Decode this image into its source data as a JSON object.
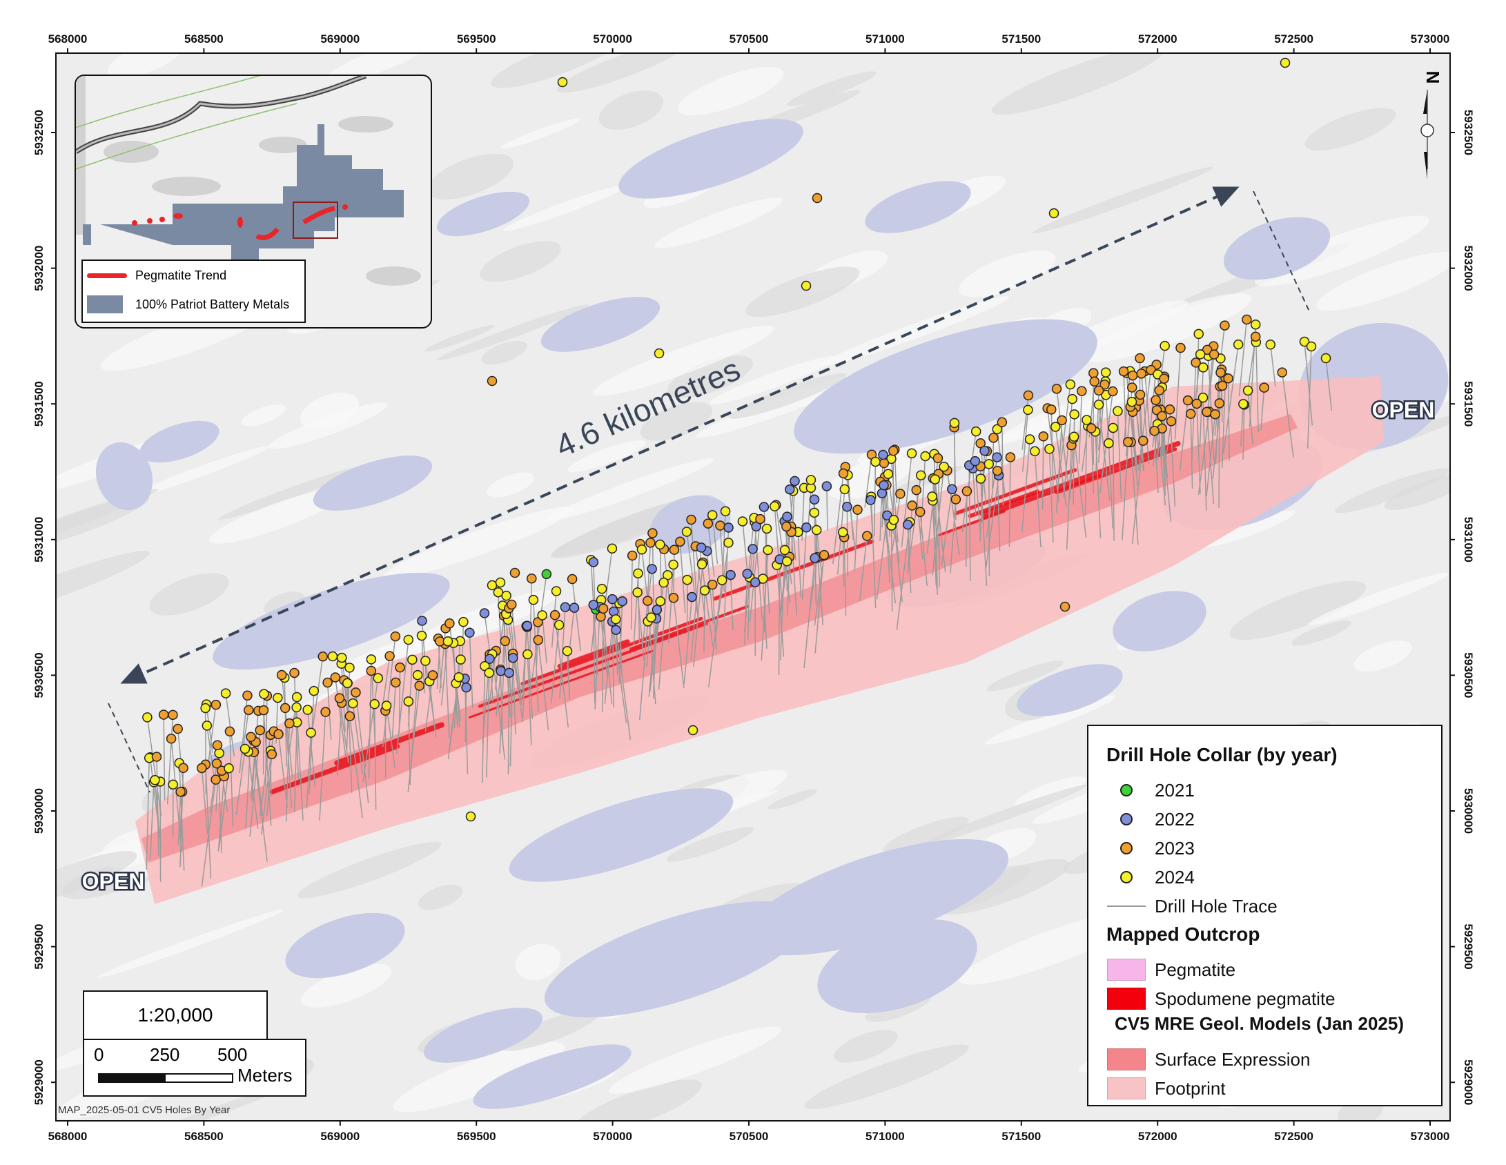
{
  "map": {
    "x_ticks": [
      "568000",
      "568500",
      "569000",
      "569500",
      "570000",
      "570500",
      "571000",
      "571500",
      "572000",
      "572500",
      "573000"
    ],
    "y_ticks": [
      "5932500",
      "5932000",
      "5931500",
      "5931000",
      "5930500",
      "5930000",
      "5929500",
      "5929000"
    ],
    "distance_label": "4.6 kilometres",
    "open_label_west": "OPEN",
    "open_label_east": "OPEN",
    "north_label": "N",
    "colors": {
      "lake": "#c7cbe5",
      "footprint": "#f6b7b8",
      "surface_expression": "#f2878b",
      "spodumene": "#e8101a",
      "y2021": "#3fd13a",
      "y2022": "#7f8fdc",
      "y2023": "#f0a030",
      "y2024": "#f6ee2a",
      "trace": "#9a9a9a",
      "arrow": "#3a4658"
    }
  },
  "inset": {
    "legend": [
      {
        "label": "Pegmatite Trend",
        "symbol": "red-line",
        "color": "#e8262a"
      },
      {
        "label": "100% Patriot Battery Metals",
        "symbol": "blue-gray-box",
        "color": "#7a8aa3"
      }
    ]
  },
  "legend": {
    "collar_title": "Drill Hole Collar (by year)",
    "years": [
      {
        "label": "2021",
        "color": "#3fd13a"
      },
      {
        "label": "2022",
        "color": "#7f8fdc"
      },
      {
        "label": "2023",
        "color": "#f0a030"
      },
      {
        "label": "2024",
        "color": "#f6ee2a"
      }
    ],
    "trace_label": "Drill Hole Trace",
    "outcrop_title": "Mapped Outcrop",
    "outcrop": [
      {
        "label": "Pegmatite",
        "color": "#f7b6e9"
      },
      {
        "label": "Spodumene pegmatite",
        "color": "#f2000b"
      }
    ],
    "models_title": "CV5 MRE Geol. Models (Jan 2025)",
    "models": [
      {
        "label": "Surface Expression",
        "color": "#f4858a"
      },
      {
        "label": "Footprint",
        "color": "#f8c3c4"
      }
    ]
  },
  "scale": {
    "ratio": "1:20,000",
    "ticks": [
      "0",
      "250",
      "500"
    ],
    "unit": "Meters"
  },
  "footer": "MAP_2025-05-01 CV5 Holes By Year"
}
